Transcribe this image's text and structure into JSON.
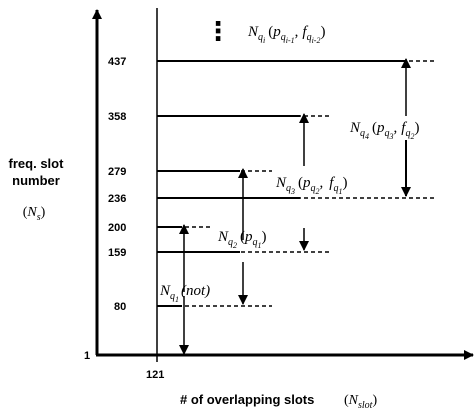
{
  "y_axis": {
    "label_line1": "freq. slot",
    "label_line2": "number",
    "symbol": {
      "open": "(",
      "main": "N",
      "sub": "s",
      "close": ")"
    },
    "origin_label": "1",
    "ticks": [
      "80",
      "159",
      "200",
      "236",
      "279",
      "358",
      "437"
    ]
  },
  "x_axis": {
    "label": "# of overlapping slots",
    "symbol": {
      "open": "(",
      "main": "N",
      "sub": "slot",
      "close": ")"
    },
    "tick": "121"
  },
  "ellipsis": "⋮",
  "formulas": {
    "f1": {
      "base": "N",
      "sub": "q",
      "subsub": "1",
      "args": "(not)"
    },
    "f2": {
      "base": "N",
      "sub": "q",
      "subsub": "2",
      "open": "(",
      "p": "p",
      "psub": "q",
      "psubsub": "1",
      "close": ")"
    },
    "f3": {
      "base": "N",
      "sub": "q",
      "subsub": "3",
      "open": "(",
      "p": "p",
      "psub": "q",
      "psubsub": "2",
      "comma": ",",
      "f": "f",
      "fsub": "q",
      "fsubsub": "1",
      "close": ")"
    },
    "f4": {
      "base": "N",
      "sub": "q",
      "subsub": "4",
      "open": "(",
      "p": "p",
      "psub": "q",
      "psubsub": "3",
      "comma": ",",
      "f": "f",
      "fsub": "q",
      "fsubsub": "2",
      "close": ")"
    },
    "f5": {
      "base": "N",
      "sub": "q",
      "subsub": "i",
      "open": "(",
      "p": "p",
      "psub": "q",
      "psubsub": "i-1",
      "comma": ",",
      "f": "f",
      "fsub": "q",
      "fsubsub": "i-2",
      "close": ")"
    }
  }
}
